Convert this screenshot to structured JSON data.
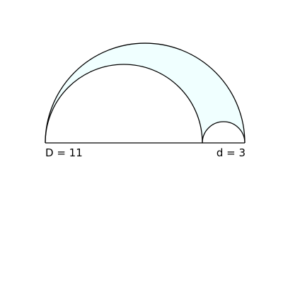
{
  "labels": {
    "large_diameter": "D = 11",
    "small_diameter": "d = 3"
  },
  "values": {
    "large_diameter": 11,
    "small_diameter": 3
  },
  "colors": {
    "region_fill": "#f0ffff",
    "stroke": "#000000",
    "background": "#ffffff"
  }
}
